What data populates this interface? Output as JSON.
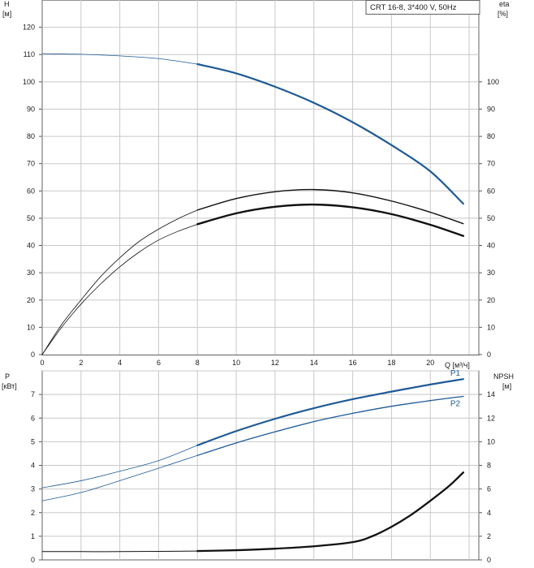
{
  "chart_data": [
    {
      "type": "line",
      "title": "CRT 16-8, 3*400 V, 50Hz",
      "ylabel_left": "H",
      "ylabel_left_unit": "[м]",
      "ylabel_right": "eta",
      "ylabel_right_unit": "[%]",
      "xlabel": "Q [м³/ч]",
      "xlim": [
        0,
        22.5
      ],
      "ylim_left": [
        0,
        130
      ],
      "ylim_right": [
        0,
        100
      ],
      "x_ticks": [
        "0",
        "2",
        "4",
        "6",
        "8",
        "10",
        "12",
        "14",
        "16",
        "18",
        "20"
      ],
      "y_ticks_left": [
        "0",
        "10",
        "20",
        "30",
        "40",
        "50",
        "60",
        "70",
        "80",
        "90",
        "100",
        "110",
        "120"
      ],
      "y_ticks_right": [
        "0",
        "10",
        "20",
        "30",
        "40",
        "50",
        "60",
        "70",
        "80",
        "90",
        "100"
      ],
      "grid": true,
      "colors": {
        "head": "#1f5a96",
        "eta": "#111111"
      },
      "series": [
        {
          "key": "head",
          "axis": "left",
          "thin_range": [
            0,
            8
          ],
          "x": [
            0,
            2,
            4,
            6,
            8,
            10,
            12,
            14,
            16,
            18,
            20,
            21.7
          ],
          "y": [
            110.3,
            110.1,
            109.5,
            108.5,
            106.5,
            103.1,
            98.2,
            92.3,
            85.2,
            76.8,
            67.2,
            55.3
          ]
        },
        {
          "key": "eta-upper",
          "axis": "left",
          "thin_range": [
            0,
            8
          ],
          "x": [
            0,
            1,
            2,
            3,
            4,
            5,
            6,
            7,
            8,
            10,
            12,
            14,
            16,
            18,
            20,
            21.7
          ],
          "y": [
            0,
            11,
            20,
            28.5,
            35.5,
            41.5,
            46,
            49.8,
            53,
            57.2,
            59.7,
            60.5,
            59.3,
            56.3,
            52.2,
            48
          ]
        },
        {
          "key": "eta-lower",
          "axis": "left",
          "thin_range": [
            0,
            8
          ],
          "x": [
            0,
            1,
            2,
            3,
            4,
            5,
            6,
            7,
            8,
            10,
            12,
            14,
            16,
            18,
            20,
            21.7
          ],
          "y": [
            0,
            10,
            18.5,
            25.8,
            32.2,
            37.6,
            42,
            45.2,
            47.8,
            51.8,
            54.2,
            55,
            54,
            51.5,
            47.6,
            43.5
          ]
        }
      ]
    },
    {
      "type": "line",
      "ylabel_left": "P",
      "ylabel_left_unit": "[кВт]",
      "ylabel_right": "NPSH",
      "ylabel_right_unit": "[м]",
      "xlim": [
        0,
        22.5
      ],
      "ylim_left": [
        0,
        8
      ],
      "ylim_right": [
        0,
        16
      ],
      "y_ticks_left": [
        "0",
        "1",
        "2",
        "3",
        "4",
        "5",
        "6",
        "7"
      ],
      "y_ticks_right": [
        "0",
        "2",
        "4",
        "6",
        "8",
        "10",
        "12",
        "14"
      ],
      "grid": true,
      "colors": {
        "power": "#1f5a96",
        "npsh": "#111111"
      },
      "series": [
        {
          "name": "P1",
          "key": "p1",
          "axis": "left",
          "thin_range": [
            0,
            8
          ],
          "x": [
            0,
            2,
            4,
            6,
            8,
            10,
            12,
            14,
            16,
            18,
            20,
            21.7
          ],
          "y": [
            3.05,
            3.35,
            3.75,
            4.2,
            4.85,
            5.45,
            5.97,
            6.42,
            6.8,
            7.12,
            7.42,
            7.65
          ]
        },
        {
          "name": "P2",
          "key": "p2",
          "axis": "left",
          "thin_range": [
            0,
            8
          ],
          "x": [
            0,
            2,
            4,
            6,
            8,
            10,
            12,
            14,
            16,
            18,
            20,
            21.7
          ],
          "y": [
            2.5,
            2.85,
            3.35,
            3.88,
            4.42,
            4.95,
            5.42,
            5.85,
            6.2,
            6.5,
            6.74,
            6.92
          ]
        },
        {
          "key": "npsh",
          "axis": "right",
          "thin_range": [
            0,
            8
          ],
          "x": [
            0,
            2,
            4,
            6,
            8,
            10,
            12,
            14,
            16,
            17,
            18,
            19,
            20,
            21,
            21.7
          ],
          "y": [
            0.7,
            0.7,
            0.7,
            0.72,
            0.75,
            0.82,
            0.95,
            1.15,
            1.5,
            2,
            2.8,
            3.8,
            5,
            6.3,
            7.4
          ]
        }
      ]
    }
  ]
}
